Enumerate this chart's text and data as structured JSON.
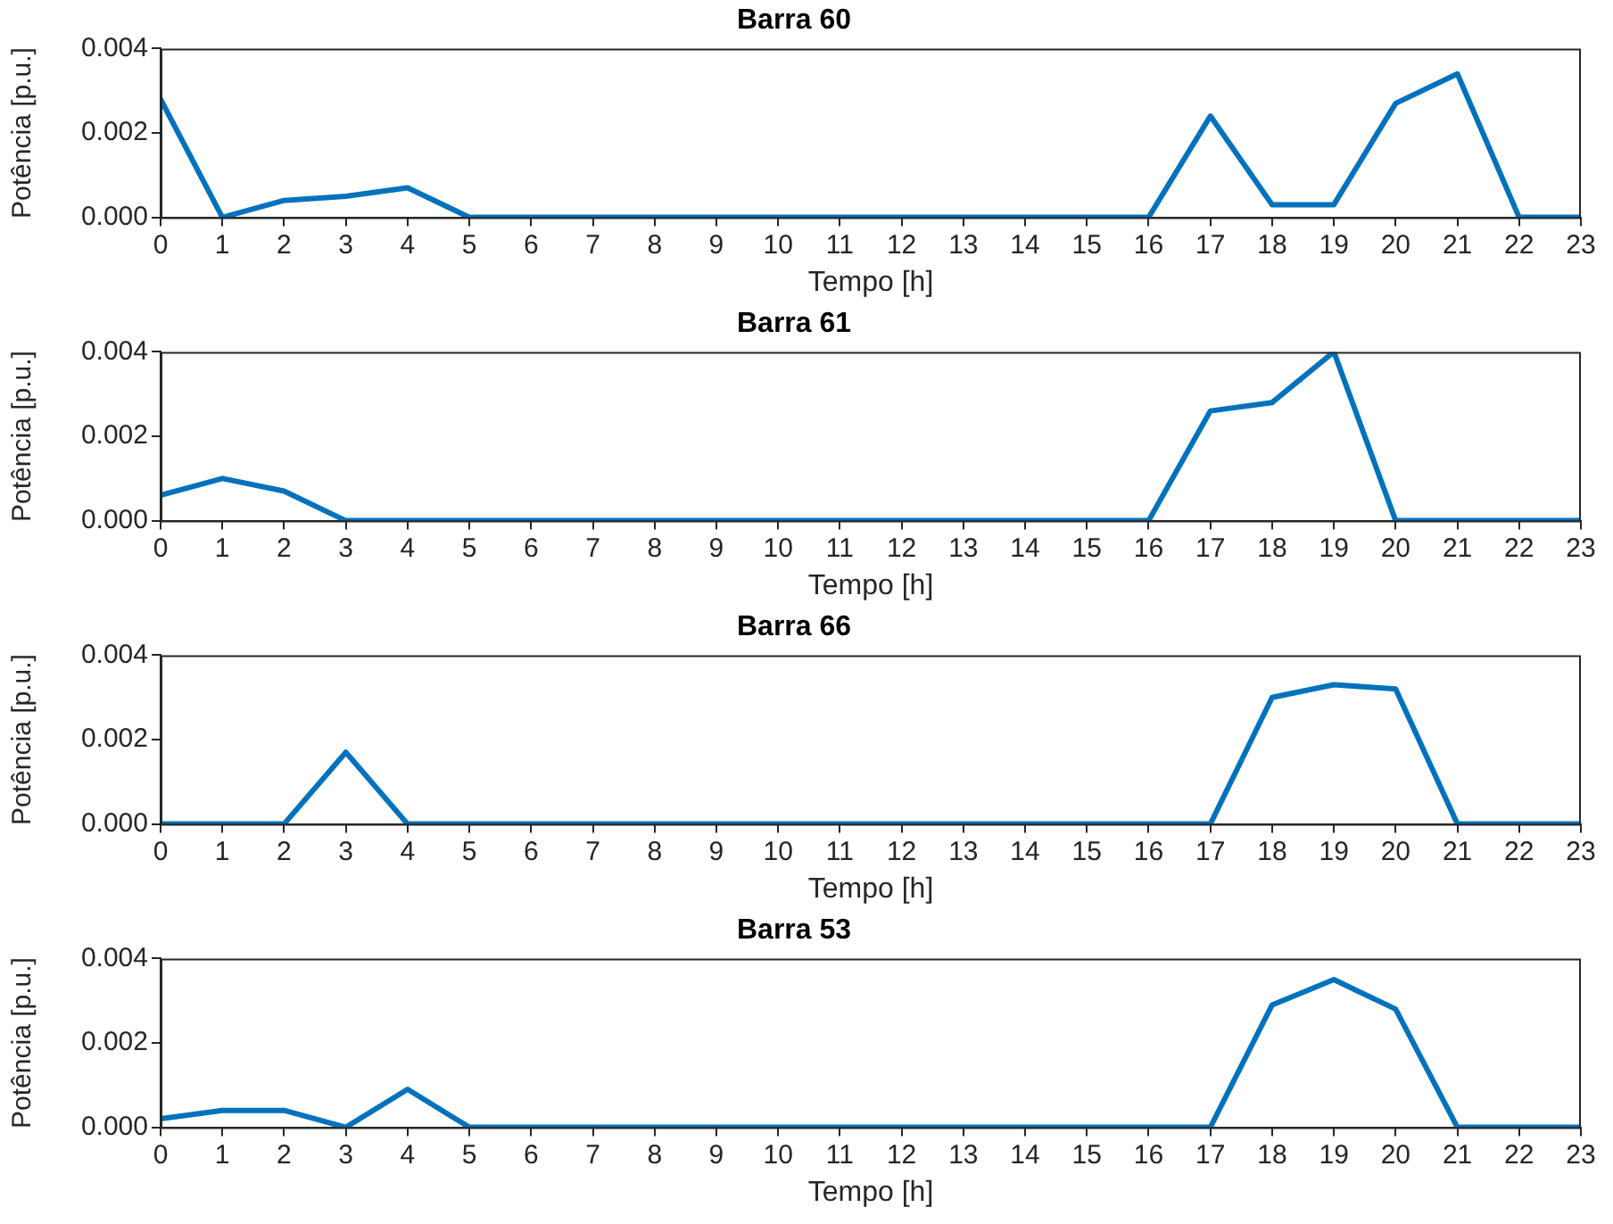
{
  "chart_data": [
    {
      "type": "line",
      "title": "Barra 60",
      "xlabel": "Tempo [h]",
      "ylabel": "Potência [p.u.]",
      "x": [
        0,
        1,
        2,
        3,
        4,
        5,
        6,
        7,
        8,
        9,
        10,
        11,
        12,
        13,
        14,
        15,
        16,
        17,
        18,
        19,
        20,
        21,
        22,
        23
      ],
      "series": [
        {
          "color": "#0072bd",
          "values": [
            0.0028,
            0,
            0.0004,
            0.0005,
            0.0007,
            0,
            0,
            0,
            0,
            0,
            0,
            0,
            0,
            0,
            0,
            0,
            0,
            0.0024,
            0.0003,
            0.0003,
            0.0027,
            0.0034,
            0,
            0
          ]
        }
      ],
      "xlim": [
        0,
        23
      ],
      "xticks": [
        0,
        1,
        2,
        3,
        4,
        5,
        6,
        7,
        8,
        9,
        10,
        11,
        12,
        13,
        14,
        15,
        16,
        17,
        18,
        19,
        20,
        21,
        22,
        23
      ],
      "ylim": [
        0,
        0.004
      ],
      "yticks": [
        {
          "value": 0,
          "label": "0.000"
        },
        {
          "value": 0.002,
          "label": "0.002"
        },
        {
          "value": 0.004,
          "label": "0.004"
        }
      ],
      "grid": false,
      "legend": false,
      "marker": "none",
      "line_style": "solid"
    },
    {
      "type": "line",
      "title": "Barra 61",
      "xlabel": "Tempo [h]",
      "ylabel": "Potência [p.u.]",
      "x": [
        0,
        1,
        2,
        3,
        4,
        5,
        6,
        7,
        8,
        9,
        10,
        11,
        12,
        13,
        14,
        15,
        16,
        17,
        18,
        19,
        20,
        21,
        22,
        23
      ],
      "series": [
        {
          "color": "#0072bd",
          "values": [
            0.0006,
            0.001,
            0.0007,
            0,
            0,
            0,
            0,
            0,
            0,
            0,
            0,
            0,
            0,
            0,
            0,
            0,
            0,
            0.0026,
            0.0028,
            0.004,
            0,
            0,
            0,
            0
          ]
        }
      ],
      "xlim": [
        0,
        23
      ],
      "xticks": [
        0,
        1,
        2,
        3,
        4,
        5,
        6,
        7,
        8,
        9,
        10,
        11,
        12,
        13,
        14,
        15,
        16,
        17,
        18,
        19,
        20,
        21,
        22,
        23
      ],
      "ylim": [
        0,
        0.004
      ],
      "yticks": [
        {
          "value": 0,
          "label": "0.000"
        },
        {
          "value": 0.002,
          "label": "0.002"
        },
        {
          "value": 0.004,
          "label": "0.004"
        }
      ],
      "grid": false,
      "legend": false,
      "marker": "none",
      "line_style": "solid"
    },
    {
      "type": "line",
      "title": "Barra 66",
      "xlabel": "Tempo [h]",
      "ylabel": "Potência [p.u.]",
      "x": [
        0,
        1,
        2,
        3,
        4,
        5,
        6,
        7,
        8,
        9,
        10,
        11,
        12,
        13,
        14,
        15,
        16,
        17,
        18,
        19,
        20,
        21,
        22,
        23
      ],
      "series": [
        {
          "color": "#0072bd",
          "values": [
            0,
            0,
            0,
            0.0017,
            0,
            0,
            0,
            0,
            0,
            0,
            0,
            0,
            0,
            0,
            0,
            0,
            0,
            0,
            0.003,
            0.0033,
            0.0032,
            0,
            0,
            0
          ]
        }
      ],
      "xlim": [
        0,
        23
      ],
      "xticks": [
        0,
        1,
        2,
        3,
        4,
        5,
        6,
        7,
        8,
        9,
        10,
        11,
        12,
        13,
        14,
        15,
        16,
        17,
        18,
        19,
        20,
        21,
        22,
        23
      ],
      "ylim": [
        0,
        0.004
      ],
      "yticks": [
        {
          "value": 0,
          "label": "0.000"
        },
        {
          "value": 0.002,
          "label": "0.002"
        },
        {
          "value": 0.004,
          "label": "0.004"
        }
      ],
      "grid": false,
      "legend": false,
      "marker": "none",
      "line_style": "solid"
    },
    {
      "type": "line",
      "title": "Barra 53",
      "xlabel": "Tempo [h]",
      "ylabel": "Potência [p.u.]",
      "x": [
        0,
        1,
        2,
        3,
        4,
        5,
        6,
        7,
        8,
        9,
        10,
        11,
        12,
        13,
        14,
        15,
        16,
        17,
        18,
        19,
        20,
        21,
        22,
        23
      ],
      "series": [
        {
          "color": "#0072bd",
          "values": [
            0.0002,
            0.0004,
            0.0004,
            0,
            0.0009,
            0,
            0,
            0,
            0,
            0,
            0,
            0,
            0,
            0,
            0,
            0,
            0,
            0,
            0.0029,
            0.0035,
            0.0028,
            0,
            0,
            0
          ]
        }
      ],
      "xlim": [
        0,
        23
      ],
      "xticks": [
        0,
        1,
        2,
        3,
        4,
        5,
        6,
        7,
        8,
        9,
        10,
        11,
        12,
        13,
        14,
        15,
        16,
        17,
        18,
        19,
        20,
        21,
        22,
        23
      ],
      "ylim": [
        0,
        0.004
      ],
      "yticks": [
        {
          "value": 0,
          "label": "0.000"
        },
        {
          "value": 0.002,
          "label": "0.002"
        },
        {
          "value": 0.004,
          "label": "0.004"
        }
      ],
      "grid": false,
      "legend": false,
      "marker": "none",
      "line_style": "solid"
    }
  ]
}
